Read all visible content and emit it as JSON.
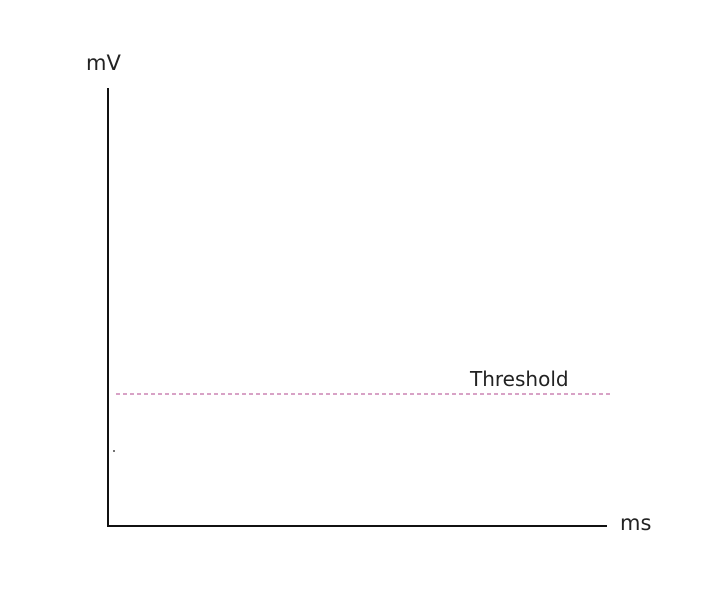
{
  "chart_data": {
    "type": "line",
    "title": "",
    "xlabel": "ms",
    "ylabel": "mV",
    "grid": false,
    "series": [],
    "threshold": {
      "label": "Threshold",
      "color": "#b0448c"
    },
    "axis_color": "#111111"
  }
}
